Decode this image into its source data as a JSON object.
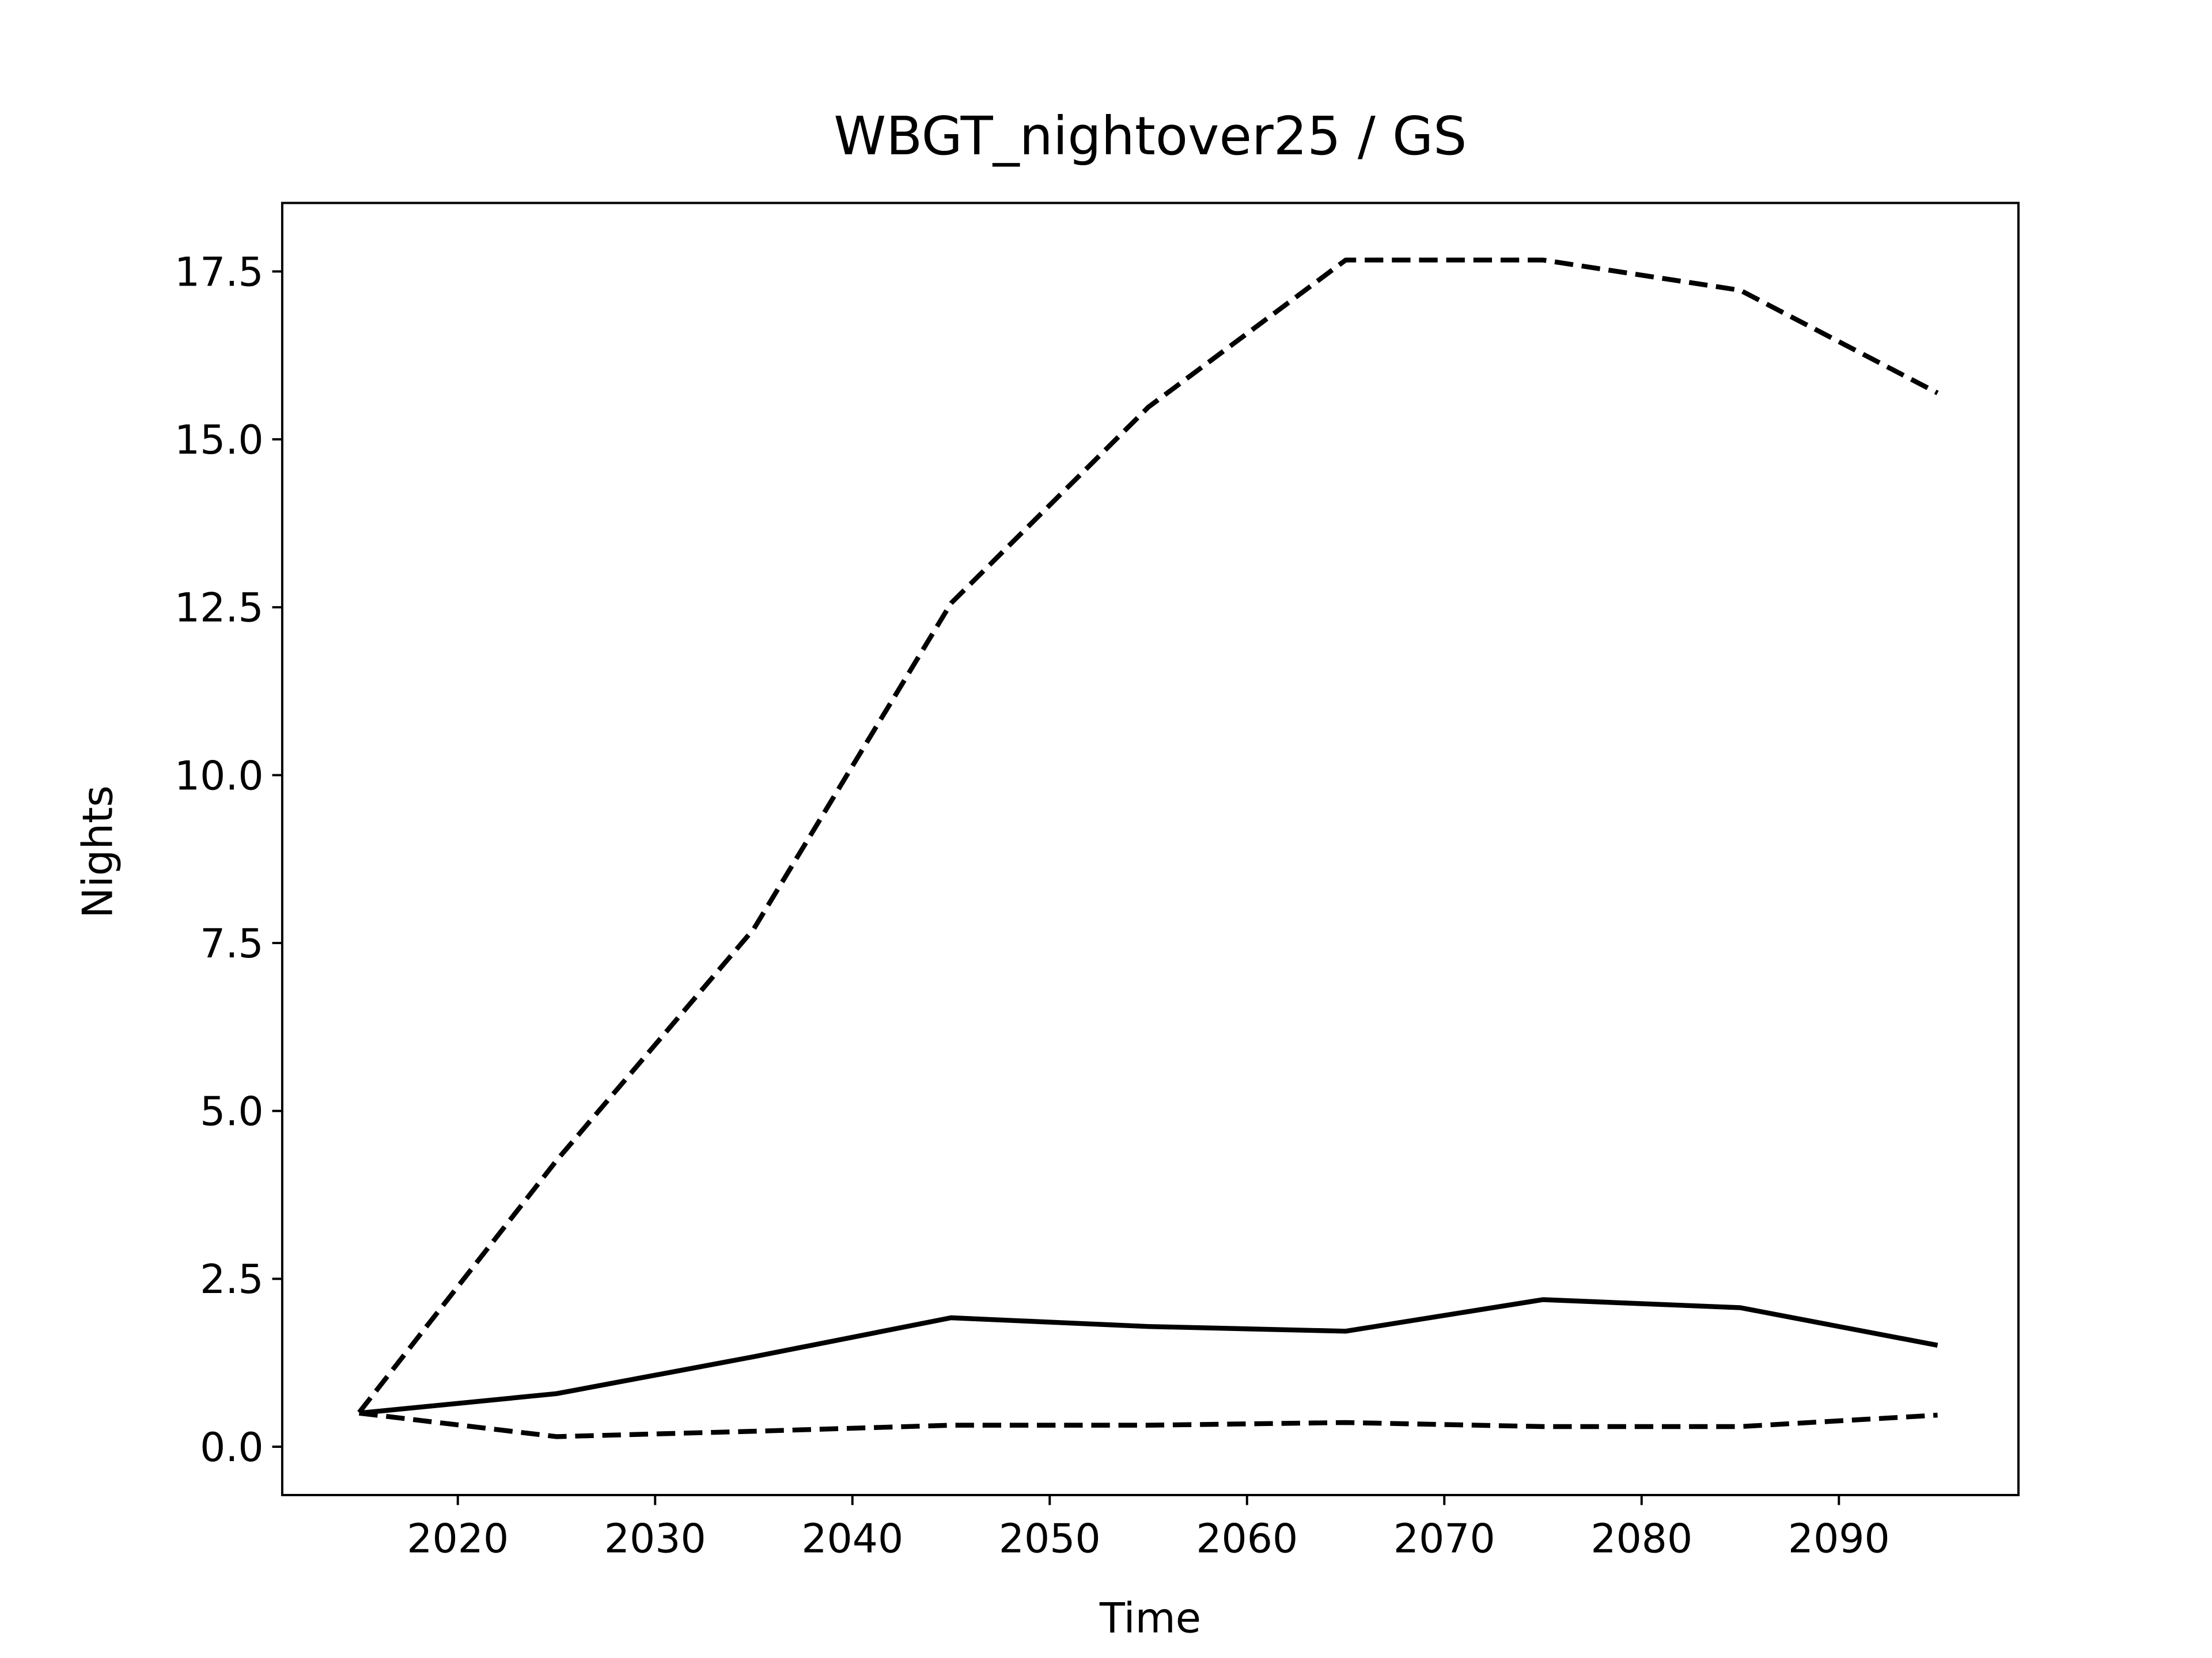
{
  "chart_data": {
    "type": "line",
    "title": "WBGT_nightover25 / GS",
    "x_label": "Time",
    "y_label": "Nights",
    "x": [
      2015,
      2025,
      2035,
      2045,
      2055,
      2065,
      2075,
      2085,
      2095
    ],
    "series": [
      {
        "color": "#000000",
        "style": "dashed",
        "values": [
          0.51,
          4.26,
          7.71,
          12.56,
          15.48,
          17.67,
          17.67,
          17.22,
          15.69
        ]
      },
      {
        "color": "#000000",
        "style": "solid",
        "values": [
          0.5,
          0.79,
          1.34,
          1.92,
          1.79,
          1.72,
          2.19,
          2.07,
          1.51
        ]
      },
      {
        "color": "#000000",
        "style": "dashed",
        "values": [
          0.5,
          0.15,
          0.23,
          0.32,
          0.32,
          0.36,
          0.3,
          0.3,
          0.47
        ]
      }
    ],
    "xlim": [
      2011.1,
      2099.1
    ],
    "xticks": [
      2020,
      2030,
      2040,
      2050,
      2060,
      2070,
      2080,
      2090
    ],
    "ylim": [
      -0.72,
      18.52
    ],
    "yticks": [
      {
        "value": 0,
        "label": "0.0"
      },
      {
        "value": 2.5,
        "label": "2.5"
      },
      {
        "value": 5,
        "label": "5.0"
      },
      {
        "value": 7.5,
        "label": "7.5"
      },
      {
        "value": 10,
        "label": "10.0"
      },
      {
        "value": 12.5,
        "label": "12.5"
      },
      {
        "value": 15,
        "label": "15.0"
      },
      {
        "value": 17.5,
        "label": "17.5"
      }
    ],
    "grid": false
  }
}
